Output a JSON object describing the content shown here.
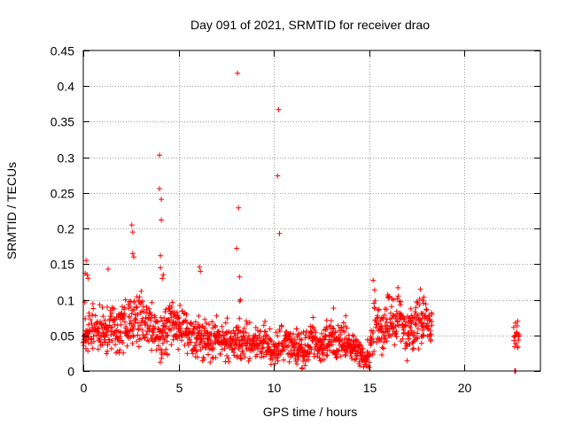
{
  "chart_data": {
    "type": "scatter",
    "title": "Day 091 of 2021, SRMTID for receiver drao",
    "xlabel": "GPS time / hours",
    "ylabel": "SRMTID / TECUs",
    "xlim": [
      0,
      24
    ],
    "ylim": [
      0,
      0.45
    ],
    "xticks": [
      0,
      5,
      10,
      15,
      20
    ],
    "yticks": [
      0,
      0.05,
      0.1,
      0.15,
      0.2,
      0.25,
      0.3,
      0.35,
      0.4,
      0.45
    ],
    "xtick_labels": [
      "0",
      "5",
      "10",
      "15",
      "20"
    ],
    "ytick_labels": [
      "0",
      "0.05",
      "0.1",
      "0.15",
      "0.2",
      "0.25",
      "0.3",
      "0.35",
      "0.4",
      "0.45"
    ],
    "grid": true,
    "marker": "+",
    "marker_color": "#ff0000",
    "series": [
      {
        "name": "SRMTID",
        "x": [
          0.1,
          0.15,
          0.2,
          0.25,
          1.3,
          2.55,
          2.6,
          2.6,
          2.65,
          4.0,
          4.0,
          4.05,
          4.05,
          4.1,
          4.1,
          4.15,
          4.2,
          6.1,
          6.15,
          8.05,
          8.1,
          8.15,
          8.2,
          8.25,
          10.2,
          10.25,
          10.3,
          22.65,
          22.7
        ],
        "y": [
          0.137,
          0.155,
          0.135,
          0.13,
          0.143,
          0.205,
          0.195,
          0.165,
          0.16,
          0.303,
          0.256,
          0.162,
          0.145,
          0.241,
          0.212,
          0.13,
          0.135,
          0.146,
          0.14,
          0.172,
          0.418,
          0.229,
          0.132,
          0.1,
          0.274,
          0.367,
          0.193,
          0.0,
          0.0
        ]
      }
    ],
    "dense_bands": [
      {
        "x_start": 0.0,
        "x_end": 18.3,
        "step": 0.02,
        "description": "continuous dense data 0-18.3 h"
      },
      {
        "x_start": 22.6,
        "x_end": 22.9,
        "step": 0.02,
        "description": "short data segment near 22.7 h"
      }
    ],
    "envelope": {
      "x": [
        0,
        0.5,
        1,
        1.5,
        2,
        2.5,
        3,
        3.5,
        4,
        4.5,
        5,
        5.5,
        6,
        6.5,
        7,
        7.5,
        8,
        8.5,
        9,
        9.5,
        10,
        10.5,
        11,
        11.5,
        12,
        12.5,
        13,
        13.5,
        14,
        14.5,
        14.8,
        15,
        15.3,
        15.6,
        16,
        16.3,
        16.6,
        17,
        17.3,
        17.6,
        18,
        18.3
      ],
      "mean": [
        0.045,
        0.06,
        0.05,
        0.06,
        0.055,
        0.07,
        0.075,
        0.065,
        0.045,
        0.06,
        0.065,
        0.05,
        0.045,
        0.04,
        0.045,
        0.04,
        0.045,
        0.04,
        0.035,
        0.04,
        0.03,
        0.04,
        0.035,
        0.03,
        0.04,
        0.035,
        0.045,
        0.04,
        0.035,
        0.025,
        0.015,
        0.02,
        0.07,
        0.045,
        0.07,
        0.06,
        0.075,
        0.05,
        0.06,
        0.07,
        0.075,
        0.06
      ],
      "spread": [
        0.025,
        0.03,
        0.025,
        0.03,
        0.03,
        0.035,
        0.035,
        0.03,
        0.03,
        0.03,
        0.03,
        0.025,
        0.025,
        0.025,
        0.025,
        0.025,
        0.025,
        0.025,
        0.022,
        0.022,
        0.02,
        0.025,
        0.022,
        0.022,
        0.025,
        0.022,
        0.025,
        0.025,
        0.02,
        0.015,
        0.01,
        0.015,
        0.04,
        0.025,
        0.035,
        0.03,
        0.035,
        0.03,
        0.03,
        0.035,
        0.03,
        0.025
      ]
    },
    "late_segment": {
      "x_start": 22.6,
      "x_end": 22.9,
      "mean": 0.05,
      "spread": 0.015
    }
  }
}
